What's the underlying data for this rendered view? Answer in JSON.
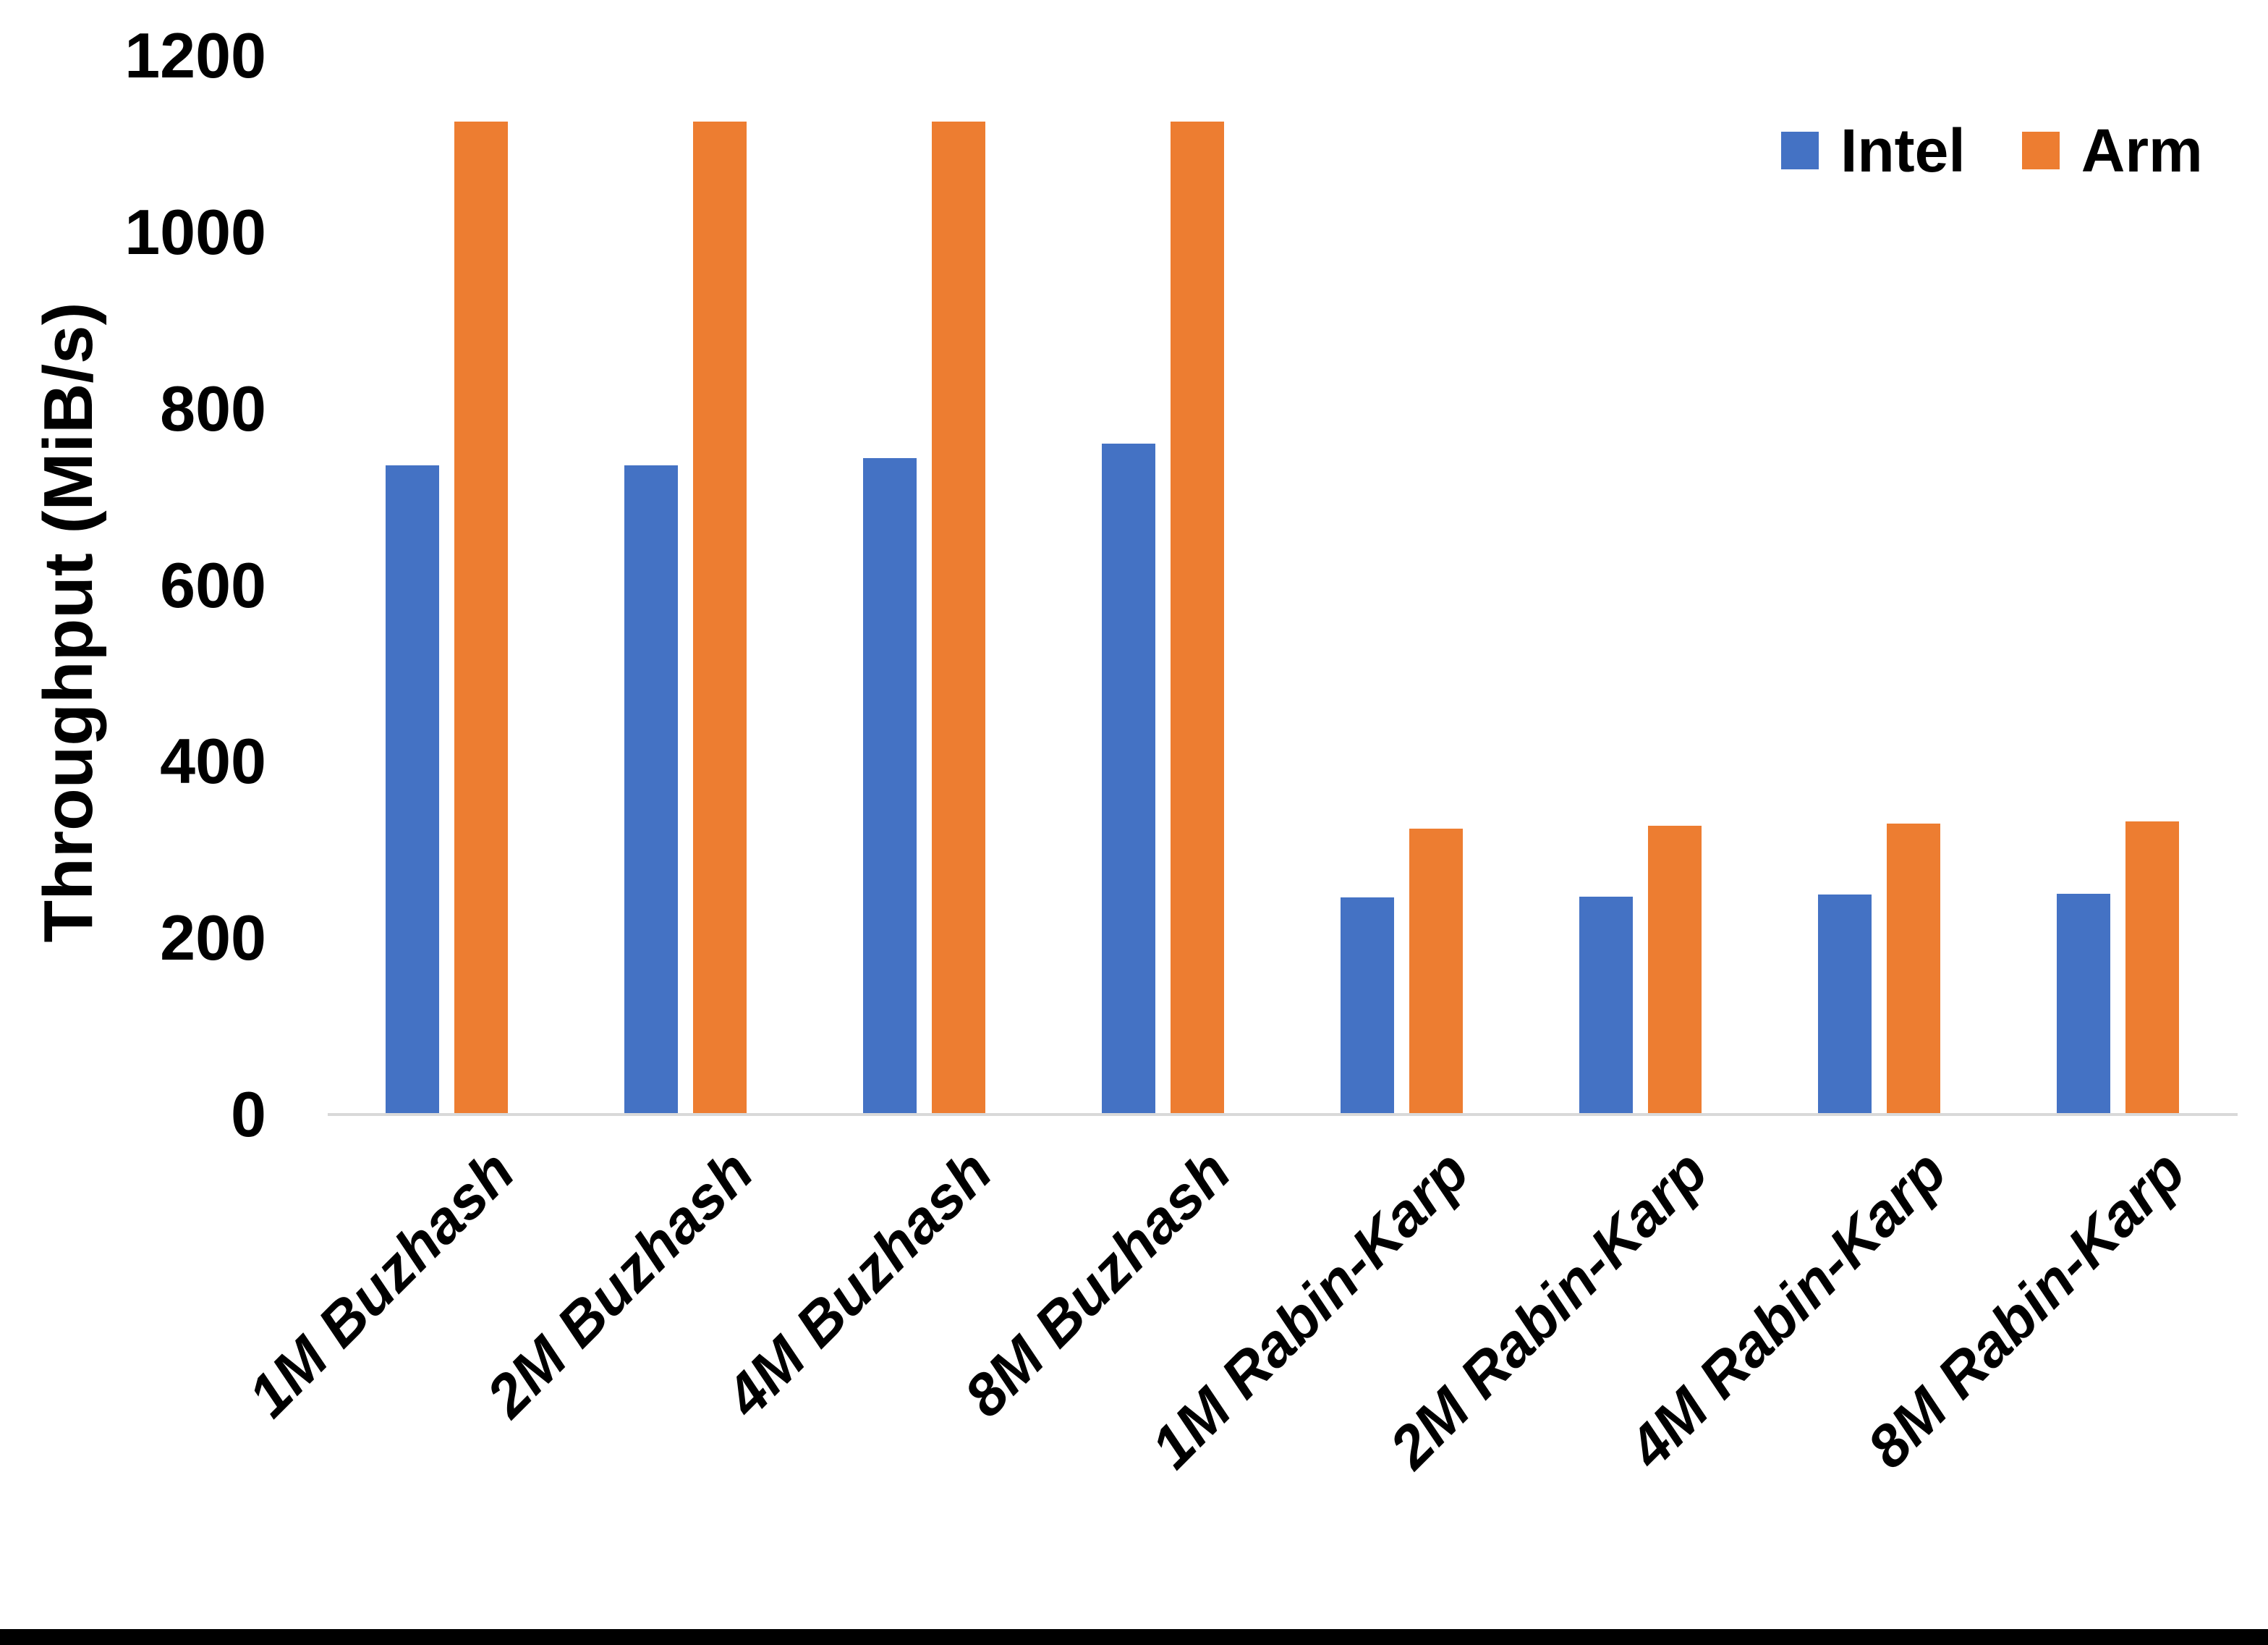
{
  "page": {
    "background": "#FFFFFF",
    "bottom_border_color": "#000000"
  },
  "chart_data": {
    "type": "bar",
    "title": "",
    "ylabel": "Throughput (MiB/s)",
    "xlabel": "",
    "ylim": [
      0,
      1200
    ],
    "yticks": [
      0,
      200,
      400,
      600,
      800,
      1000,
      1200
    ],
    "grid": false,
    "legend_position": "top-right",
    "categories": [
      "1M Buzhash",
      "2M Buzhash",
      "4M Buzhash",
      "8M Buzhash",
      "1M Rabin-Karp",
      "2M Rabin-Karp",
      "4M Rabin-Karp",
      "8M Rabin-Karp"
    ],
    "series": [
      {
        "name": "Intel",
        "color": "#4472C4",
        "values": [
          736,
          736,
          744,
          760,
          246,
          247,
          249,
          250
        ]
      },
      {
        "name": "Arm",
        "color": "#ED7D31",
        "values": [
          1125,
          1125,
          1125,
          1125,
          324,
          327,
          330,
          332
        ]
      }
    ],
    "axis_line_color": "#D9D9D9",
    "text_color": "#000000"
  }
}
